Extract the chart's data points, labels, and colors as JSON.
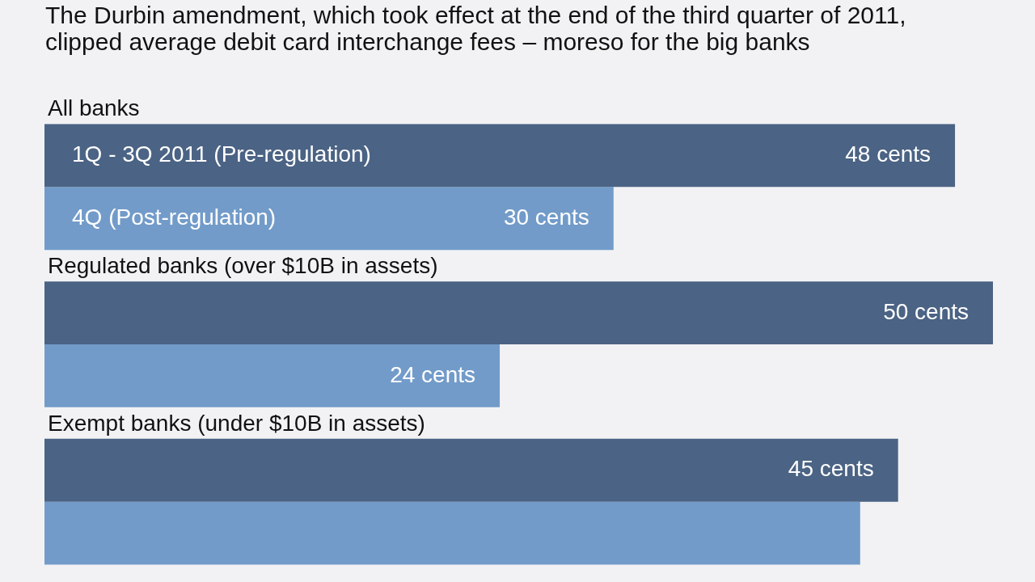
{
  "chart_data": {
    "type": "bar",
    "orientation": "horizontal",
    "title": "The Durbin amendment, which took effect at the end of the third quarter of 2011, clipped average debit card interchange fees – moreso for the big banks",
    "categories": [
      "All banks",
      "Regulated banks (over $10B in assets)",
      "Exempt banks (under $10B in assets)"
    ],
    "series": [
      {
        "name": "1Q - 3Q 2011 (Pre-regulation)",
        "color": "#4b6384",
        "values": [
          48,
          50,
          45
        ],
        "value_labels": [
          "48 cents",
          "50 cents",
          "45 cents"
        ]
      },
      {
        "name": "4Q (Post-regulation)",
        "color": "#729bc9",
        "values": [
          30,
          24,
          43
        ],
        "value_labels": [
          "30 cents",
          "24 cents",
          null
        ]
      }
    ],
    "legend": false
  }
}
